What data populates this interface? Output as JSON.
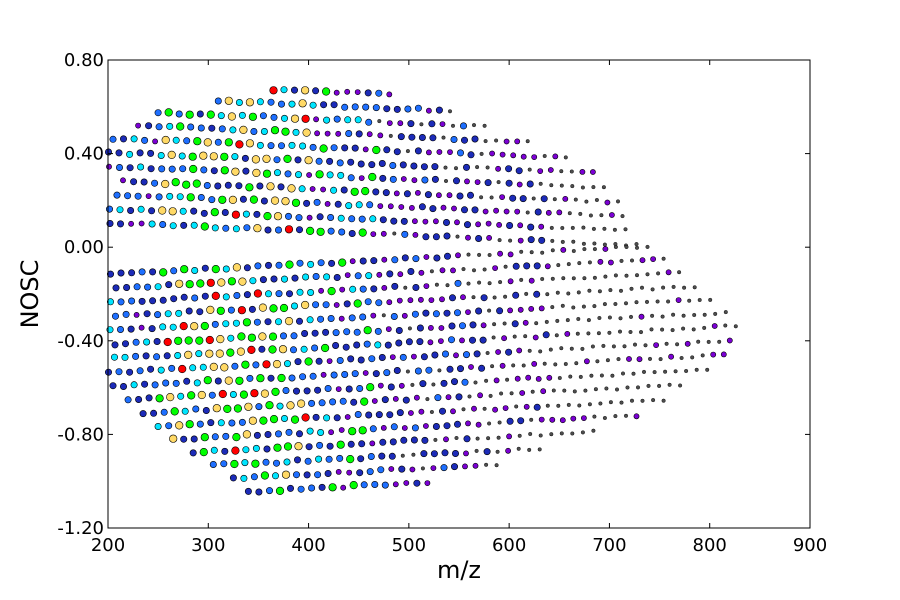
{
  "chart_data": {
    "type": "scatter",
    "title": "",
    "xlabel": "m/z",
    "ylabel": "NOSC",
    "xlim": [
      200,
      900
    ],
    "ylim": [
      -1.2,
      0.8
    ],
    "xticks": [
      200,
      300,
      400,
      500,
      600,
      700,
      800,
      900
    ],
    "xtick_labels": [
      "200",
      "300",
      "400",
      "500",
      "600",
      "700",
      "800",
      "900"
    ],
    "yticks": [
      -1.2,
      -0.8,
      -0.4,
      0.0,
      0.4,
      0.8
    ],
    "ytick_labels": [
      "-1.20",
      "-0.80",
      "-0.40",
      "0.00",
      "0.40",
      "0.80"
    ],
    "grid": false,
    "legend": "none",
    "colors": [
      "#ff0000",
      "#ffd966",
      "#00ff00",
      "#00e5ff",
      "#1e6fff",
      "#1c2bb8",
      "#7b00d4",
      "#4d4d4d"
    ],
    "bands": [
      {
        "nosc": 0.66,
        "x": [
          365,
          485
        ]
      },
      {
        "nosc": 0.6,
        "x": [
          310,
          545
        ]
      },
      {
        "nosc": 0.54,
        "x": [
          250,
          580
        ]
      },
      {
        "nosc": 0.48,
        "x": [
          230,
          620
        ]
      },
      {
        "nosc": 0.42,
        "x": [
          205,
          660
        ]
      },
      {
        "nosc": 0.36,
        "x": [
          190,
          690
        ]
      },
      {
        "nosc": 0.3,
        "x": [
          180,
          700
        ]
      },
      {
        "nosc": 0.24,
        "x": [
          215,
          710
        ]
      },
      {
        "nosc": 0.18,
        "x": [
          188,
          720
        ]
      },
      {
        "nosc": 0.12,
        "x": [
          170,
          725
        ]
      },
      {
        "nosc": 0.06,
        "x": [
          160,
          730
        ]
      },
      {
        "nosc": -0.06,
        "x": [
          150,
          745
        ]
      },
      {
        "nosc": -0.12,
        "x": [
          145,
          760
        ]
      },
      {
        "nosc": -0.18,
        "x": [
          150,
          770
        ]
      },
      {
        "nosc": -0.24,
        "x": [
          155,
          790
        ]
      },
      {
        "nosc": -0.3,
        "x": [
          160,
          810
        ]
      },
      {
        "nosc": -0.36,
        "x": [
          165,
          820
        ]
      },
      {
        "nosc": -0.42,
        "x": [
          175,
          830
        ]
      },
      {
        "nosc": -0.48,
        "x": [
          190,
          830
        ]
      },
      {
        "nosc": -0.54,
        "x": [
          205,
          820
        ]
      },
      {
        "nosc": -0.6,
        "x": [
          220,
          800
        ]
      },
      {
        "nosc": -0.66,
        "x": [
          235,
          780
        ]
      },
      {
        "nosc": -0.72,
        "x": [
          250,
          760
        ]
      },
      {
        "nosc": -0.78,
        "x": [
          265,
          730
        ]
      },
      {
        "nosc": -0.84,
        "x": [
          285,
          690
        ]
      },
      {
        "nosc": -0.9,
        "x": [
          305,
          640
        ]
      },
      {
        "nosc": -0.96,
        "x": [
          325,
          590
        ]
      },
      {
        "nosc": -1.02,
        "x": [
          340,
          520
        ]
      }
    ],
    "step_mz": 10.5
  }
}
